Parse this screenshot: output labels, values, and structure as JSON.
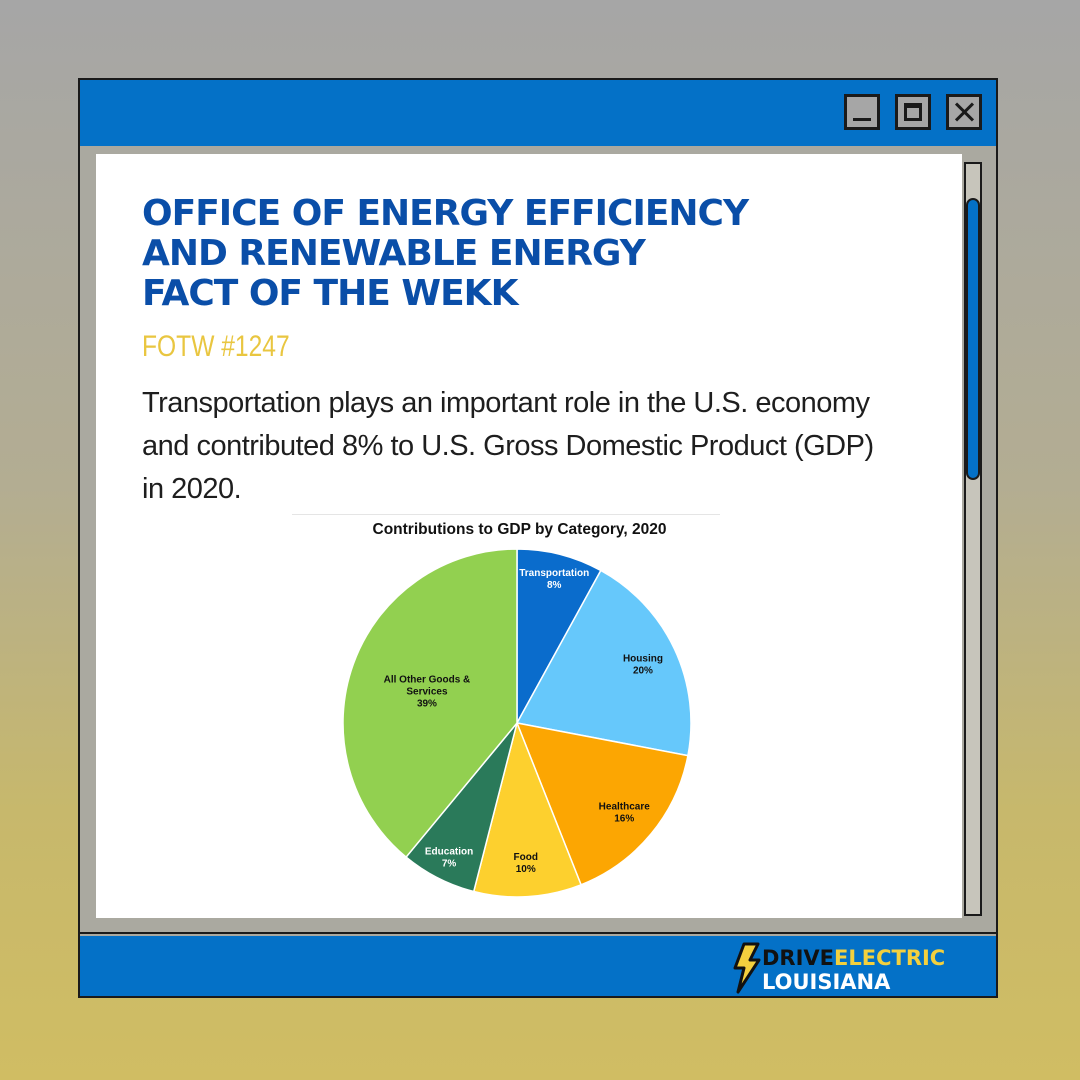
{
  "headline": {
    "line1": "OFFICE OF ENERGY EFFICIENCY",
    "line2": "AND RENEWABLE ENERGY",
    "line3": "FACT OF THE WEKK"
  },
  "fotw_label": "FOTW #1247",
  "body_text": "Transportation plays an important role in the U.S. economy and contributed 8% to U.S. Gross Domestic Product (GDP) in 2020.",
  "brand": {
    "word1": "DRIVE",
    "word2": "ELECTRIC",
    "word3": "LOUISIANA"
  },
  "colors": {
    "window_blue": "#0471c7",
    "headline_blue": "#0a4ea8",
    "accent_yellow": "#e9c640"
  },
  "chart_data": {
    "type": "pie",
    "title": "Contributions to GDP by Category, 2020",
    "slices": [
      {
        "label": "Transportation",
        "value": 8,
        "pct_label": "8%",
        "color": "#0a6ccc",
        "label_color": "#ffffff"
      },
      {
        "label": "Housing",
        "value": 20,
        "pct_label": "20%",
        "color": "#66c8fb",
        "label_color": "#111111"
      },
      {
        "label": "Healthcare",
        "value": 16,
        "pct_label": "16%",
        "color": "#fca602",
        "label_color": "#111111"
      },
      {
        "label": "Food",
        "value": 10,
        "pct_label": "10%",
        "color": "#fdd02e",
        "label_color": "#111111"
      },
      {
        "label": "Education",
        "value": 7,
        "pct_label": "7%",
        "color": "#2a7a5a",
        "label_color": "#ffffff"
      },
      {
        "label": "All Other Goods & Services",
        "label_lines": [
          "All Other Goods &",
          "Services"
        ],
        "value": 39,
        "pct_label": "39%",
        "color": "#92d050",
        "label_color": "#111111"
      }
    ]
  }
}
